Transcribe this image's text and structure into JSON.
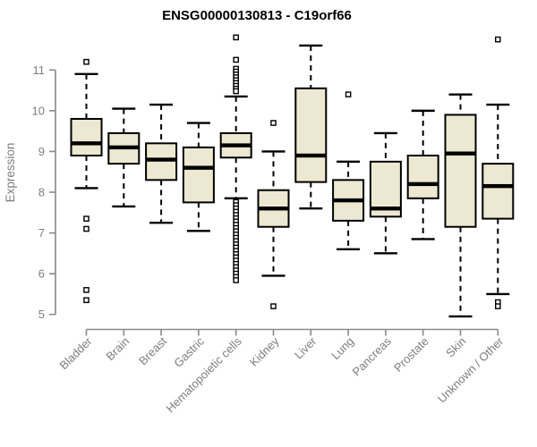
{
  "chart_data": {
    "type": "box",
    "title": "ENSG00000130813 - C19orf66",
    "ylabel": "Expression",
    "xlabel": "",
    "ylim": [
      5,
      11
    ],
    "yticks": [
      5,
      6,
      7,
      8,
      9,
      10,
      11
    ],
    "grid": false,
    "legend": "none",
    "categories": [
      "Bladder",
      "Brain",
      "Breast",
      "Gastric",
      "Hematopoietic cells",
      "Kidney",
      "Liver",
      "Lung",
      "Pancreas",
      "Prostate",
      "Skin",
      "Unknown / Other"
    ],
    "series": [
      {
        "label": "Bladder",
        "whislo": 8.1,
        "q1": 8.9,
        "med": 9.2,
        "q3": 9.8,
        "whishi": 10.9,
        "outliers": [
          11.2,
          7.35,
          7.1,
          5.6,
          5.35
        ]
      },
      {
        "label": "Brain",
        "whislo": 7.65,
        "q1": 8.7,
        "med": 9.1,
        "q3": 9.45,
        "whishi": 10.05,
        "outliers": []
      },
      {
        "label": "Breast",
        "whislo": 7.25,
        "q1": 8.3,
        "med": 8.8,
        "q3": 9.2,
        "whishi": 10.15,
        "outliers": []
      },
      {
        "label": "Gastric",
        "whislo": 7.05,
        "q1": 7.75,
        "med": 8.6,
        "q3": 9.1,
        "whishi": 9.7,
        "outliers": []
      },
      {
        "label": "Hematopoietic cells",
        "whislo": 7.85,
        "q1": 8.85,
        "med": 9.15,
        "q3": 9.45,
        "whishi": 10.35,
        "outliers": [
          11.8,
          11.25,
          11.03,
          10.96,
          10.89,
          10.82,
          10.75,
          10.68,
          10.61,
          10.54,
          10.48,
          7.76,
          7.68,
          7.6,
          7.52,
          7.44,
          7.36,
          7.28,
          7.2,
          7.12,
          7.04,
          6.96,
          6.88,
          6.8,
          6.72,
          6.64,
          6.56,
          6.48,
          6.4,
          6.32,
          6.24,
          6.16,
          6.08,
          6.0,
          5.92,
          5.84
        ]
      },
      {
        "label": "Kidney",
        "whislo": 5.95,
        "q1": 7.15,
        "med": 7.6,
        "q3": 8.05,
        "whishi": 9.0,
        "outliers": [
          9.7,
          5.2
        ]
      },
      {
        "label": "Liver",
        "whislo": 7.6,
        "q1": 8.25,
        "med": 8.9,
        "q3": 10.55,
        "whishi": 11.6,
        "outliers": []
      },
      {
        "label": "Lung",
        "whislo": 6.6,
        "q1": 7.3,
        "med": 7.8,
        "q3": 8.3,
        "whishi": 8.75,
        "outliers": [
          10.4
        ]
      },
      {
        "label": "Pancreas",
        "whislo": 6.5,
        "q1": 7.4,
        "med": 7.6,
        "q3": 8.75,
        "whishi": 9.45,
        "outliers": []
      },
      {
        "label": "Prostate",
        "whislo": 6.85,
        "q1": 7.85,
        "med": 8.2,
        "q3": 8.9,
        "whishi": 10.0,
        "outliers": []
      },
      {
        "label": "Skin",
        "whislo": 4.95,
        "q1": 7.15,
        "med": 8.95,
        "q3": 9.9,
        "whishi": 10.4,
        "outliers": []
      },
      {
        "label": "Unknown / Other",
        "whislo": 5.5,
        "q1": 7.35,
        "med": 8.15,
        "q3": 8.7,
        "whishi": 10.15,
        "outliers": [
          11.75,
          5.3,
          5.2
        ]
      }
    ],
    "colors": {
      "box_fill": "#ede8d1",
      "box_border": "#000000",
      "median": "#000000",
      "whisker": "#000000",
      "outlier_stroke": "#000000",
      "axis": "#898989",
      "tick_text": "#7d7d7d",
      "title_text": "#000000"
    }
  }
}
